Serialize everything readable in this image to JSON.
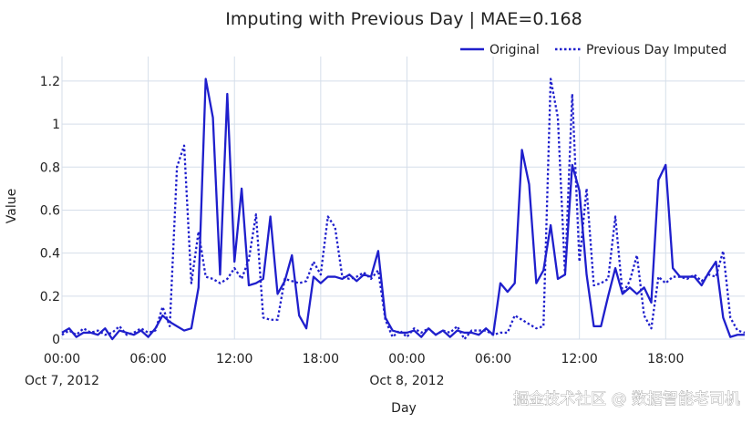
{
  "watermark": "掘金技术社区 @ 数据智能老司机",
  "chart_data": {
    "type": "line",
    "title": "Imputing with Previous Day | MAE=0.168",
    "xlabel": "Day",
    "ylabel": "Value",
    "x_unit": "hour",
    "x_start": "2012-10-07 00:00",
    "xlim": [
      0,
      47.5
    ],
    "ylim": [
      0,
      1.28
    ],
    "y_ticks": [
      0,
      0.2,
      0.4,
      0.6,
      0.8,
      1,
      1.2
    ],
    "y_tick_labels": [
      "0",
      "0.2",
      "0.4",
      "0.6",
      "0.8",
      "1",
      "1.2"
    ],
    "x_ticks": [
      0,
      6,
      12,
      18,
      24,
      30,
      36,
      42
    ],
    "x_tick_labels": [
      "00:00",
      "06:00",
      "12:00",
      "18:00",
      "00:00",
      "06:00",
      "12:00",
      "18:00"
    ],
    "x_tick_sublabels": [
      "Oct 7, 2012",
      "",
      "",
      "",
      "Oct 8, 2012",
      "",
      "",
      ""
    ],
    "grid": true,
    "legend_position": "top-right",
    "colors": {
      "line": "#1f1fcc",
      "grid": "#d5deea",
      "background": "#ffffff"
    },
    "series": [
      {
        "name": "Original",
        "style": "solid",
        "x": [
          0,
          0.5,
          1,
          1.5,
          2,
          2.5,
          3,
          3.5,
          4,
          4.5,
          5,
          5.5,
          6,
          6.5,
          7,
          7.5,
          8,
          8.5,
          9,
          9.5,
          10,
          10.5,
          11,
          11.5,
          12,
          12.5,
          13,
          13.5,
          14,
          14.5,
          15,
          15.5,
          16,
          16.5,
          17,
          17.5,
          18,
          18.5,
          19,
          19.5,
          20,
          20.5,
          21,
          21.5,
          22,
          22.5,
          23,
          23.5,
          24,
          24.5,
          25,
          25.5,
          26,
          26.5,
          27,
          27.5,
          28,
          28.5,
          29,
          29.5,
          30,
          30.5,
          31,
          31.5,
          32,
          32.5,
          33,
          33.5,
          34,
          34.5,
          35,
          35.5,
          36,
          36.5,
          37,
          37.5,
          38,
          38.5,
          39,
          39.5,
          40,
          40.5,
          41,
          41.5,
          42,
          42.5,
          43,
          43.5,
          44,
          44.5,
          45,
          45.5,
          46,
          46.5,
          47,
          47.5
        ],
        "values": [
          0.03,
          0.05,
          0.01,
          0.03,
          0.03,
          0.02,
          0.05,
          0.0,
          0.04,
          0.03,
          0.02,
          0.04,
          0.01,
          0.05,
          0.11,
          0.08,
          0.06,
          0.04,
          0.05,
          0.24,
          1.21,
          1.03,
          0.3,
          1.14,
          0.36,
          0.7,
          0.25,
          0.26,
          0.28,
          0.57,
          0.21,
          0.27,
          0.39,
          0.11,
          0.05,
          0.29,
          0.26,
          0.29,
          0.29,
          0.28,
          0.3,
          0.27,
          0.3,
          0.29,
          0.41,
          0.1,
          0.04,
          0.03,
          0.03,
          0.04,
          0.01,
          0.05,
          0.02,
          0.04,
          0.01,
          0.04,
          0.03,
          0.03,
          0.02,
          0.05,
          0.02,
          0.26,
          0.22,
          0.26,
          0.88,
          0.72,
          0.26,
          0.32,
          0.53,
          0.28,
          0.3,
          0.81,
          0.69,
          0.3,
          0.06,
          0.06,
          0.2,
          0.33,
          0.21,
          0.24,
          0.21,
          0.24,
          0.17,
          0.74,
          0.81,
          0.33,
          0.29,
          0.29,
          0.29,
          0.25,
          0.31,
          0.36,
          0.1,
          0.01,
          0.02,
          0.02
        ]
      },
      {
        "name": "Previous Day Imputed",
        "style": "dotted",
        "x": [
          0,
          0.5,
          1,
          1.5,
          2,
          2.5,
          3,
          3.5,
          4,
          4.5,
          5,
          5.5,
          6,
          6.5,
          7,
          7.5,
          8,
          8.5,
          9,
          9.5,
          10,
          10.5,
          11,
          11.5,
          12,
          12.5,
          13,
          13.5,
          14,
          14.5,
          15,
          15.5,
          16,
          16.5,
          17,
          17.5,
          18,
          18.5,
          19,
          19.5,
          20,
          20.5,
          21,
          21.5,
          22,
          22.5,
          23,
          23.5,
          24,
          24.5,
          25,
          25.5,
          26,
          26.5,
          27,
          27.5,
          28,
          28.5,
          29,
          29.5,
          30,
          30.5,
          31,
          31.5,
          32,
          32.5,
          33,
          33.5,
          34,
          34.5,
          35,
          35.5,
          36,
          36.5,
          37,
          37.5,
          38,
          38.5,
          39,
          39.5,
          40,
          40.5,
          41,
          41.5,
          42,
          42.5,
          43,
          43.5,
          44,
          44.5,
          45,
          45.5,
          46,
          46.5,
          47,
          47.5
        ],
        "values": [
          0.02,
          0.04,
          0.02,
          0.05,
          0.03,
          0.04,
          0.02,
          0.03,
          0.06,
          0.02,
          0.03,
          0.05,
          0.03,
          0.04,
          0.15,
          0.06,
          0.8,
          0.9,
          0.26,
          0.5,
          0.29,
          0.28,
          0.26,
          0.28,
          0.33,
          0.28,
          0.37,
          0.58,
          0.1,
          0.09,
          0.09,
          0.28,
          0.27,
          0.26,
          0.27,
          0.36,
          0.3,
          0.57,
          0.52,
          0.29,
          0.28,
          0.29,
          0.31,
          0.28,
          0.32,
          0.09,
          0.01,
          0.04,
          0.01,
          0.05,
          0.03,
          0.05,
          0.02,
          0.04,
          0.03,
          0.06,
          0.0,
          0.04,
          0.04,
          0.04,
          0.02,
          0.03,
          0.03,
          0.11,
          0.09,
          0.07,
          0.05,
          0.06,
          1.21,
          1.03,
          0.3,
          1.14,
          0.36,
          0.7,
          0.25,
          0.26,
          0.28,
          0.57,
          0.21,
          0.27,
          0.39,
          0.11,
          0.05,
          0.29,
          0.26,
          0.29,
          0.29,
          0.28,
          0.3,
          0.27,
          0.3,
          0.29,
          0.41,
          0.1,
          0.04,
          0.03
        ]
      }
    ]
  }
}
